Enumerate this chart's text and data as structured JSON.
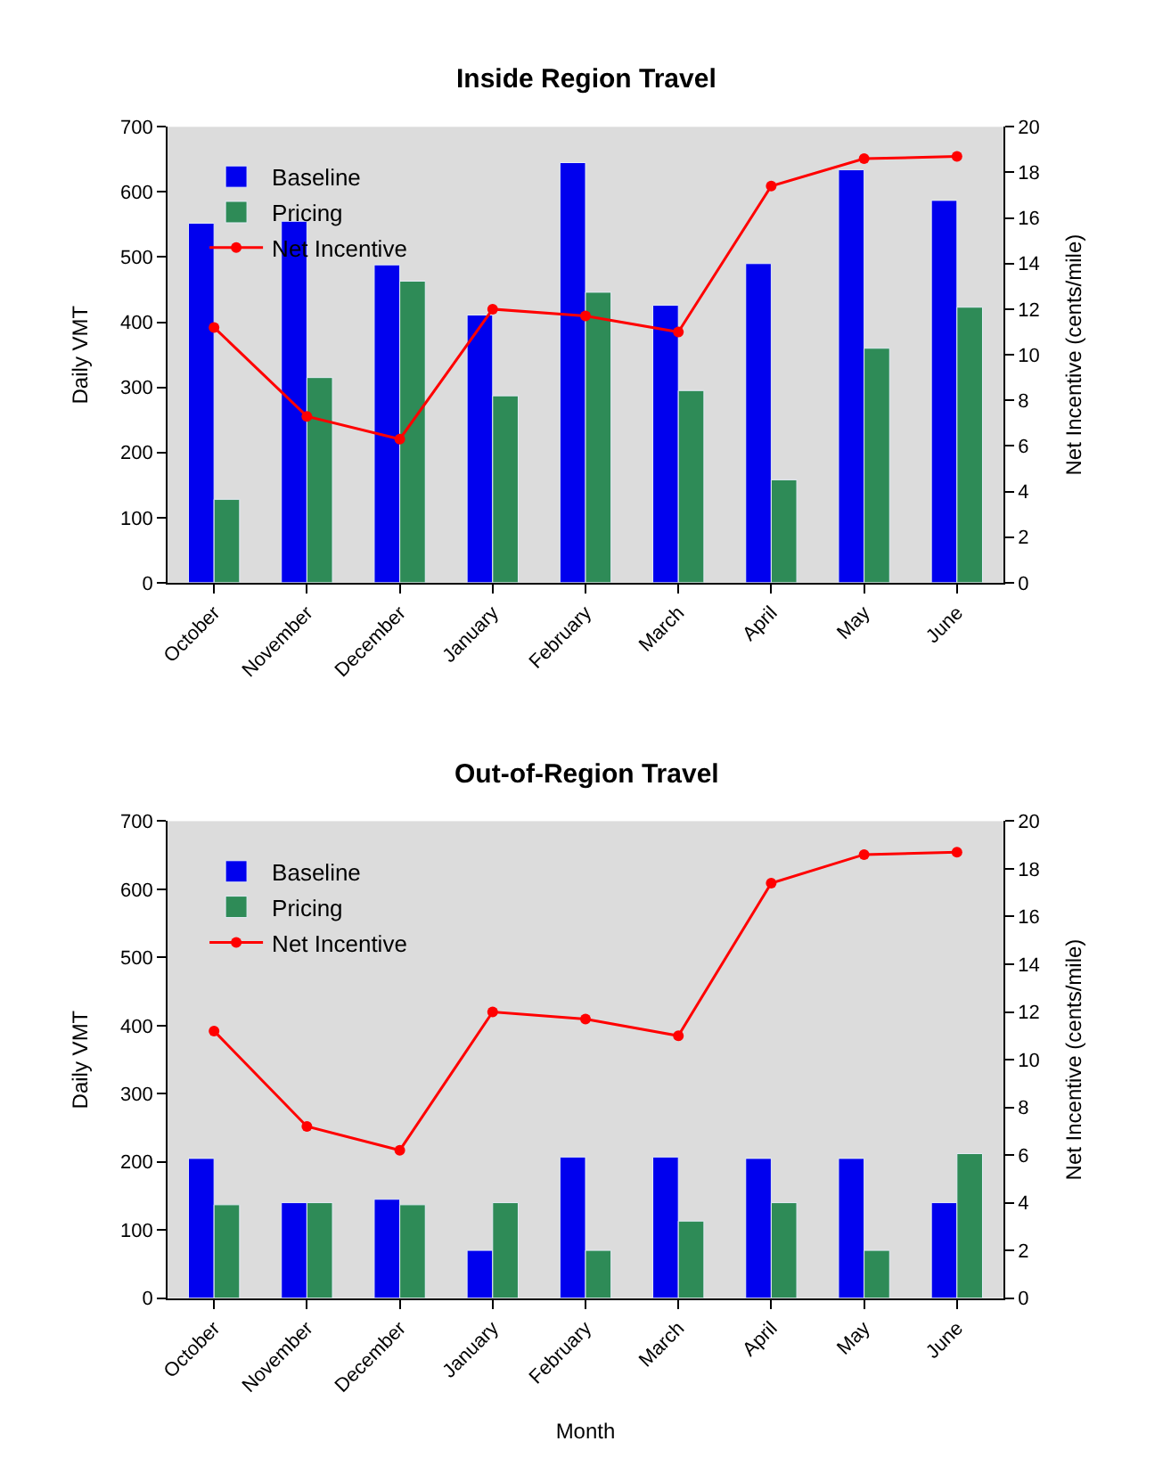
{
  "chart_data": [
    {
      "type": "bar",
      "title": "Inside Region Travel",
      "ylabel": "Daily VMT",
      "y2label": "Net Incentive (cents/mile)",
      "categories": [
        "October",
        "November",
        "December",
        "January",
        "February",
        "March",
        "April",
        "May",
        "June"
      ],
      "series": [
        {
          "name": "Baseline",
          "color": "#0000ee",
          "values": [
            552,
            555,
            488,
            411,
            645,
            426,
            490,
            634,
            587
          ]
        },
        {
          "name": "Pricing",
          "color": "#2e8b57",
          "values": [
            128,
            315,
            463,
            287,
            446,
            295,
            158,
            360,
            423
          ]
        },
        {
          "name": "Net Incentive",
          "type": "line",
          "axis": "y2",
          "color": "#ff0000",
          "marker": "circle",
          "values": [
            11.2,
            7.3,
            6.3,
            12.0,
            11.7,
            11.0,
            17.4,
            18.6,
            18.7
          ]
        }
      ],
      "ylim": [
        0,
        700
      ],
      "yticks": [
        0,
        100,
        200,
        300,
        400,
        500,
        600,
        700
      ],
      "y2lim": [
        0,
        20
      ],
      "y2ticks": [
        0,
        2,
        4,
        6,
        8,
        10,
        12,
        14,
        16,
        18,
        20
      ],
      "grid": false,
      "legend": "top left"
    },
    {
      "type": "bar",
      "title": "Out-of-Region Travel",
      "xlabel": "Month",
      "ylabel": "Daily VMT",
      "y2label": "Net Incentive (cents/mile)",
      "categories": [
        "October",
        "November",
        "December",
        "January",
        "February",
        "March",
        "April",
        "May",
        "June"
      ],
      "series": [
        {
          "name": "Baseline",
          "color": "#0000ee",
          "values": [
            205,
            140,
            145,
            70,
            207,
            207,
            205,
            205,
            140
          ]
        },
        {
          "name": "Pricing",
          "color": "#2e8b57",
          "values": [
            137,
            140,
            137,
            140,
            70,
            113,
            140,
            70,
            212
          ]
        },
        {
          "name": "Net Incentive",
          "type": "line",
          "axis": "y2",
          "color": "#ff0000",
          "marker": "circle",
          "values": [
            11.2,
            7.2,
            6.2,
            12.0,
            11.7,
            11.0,
            17.4,
            18.6,
            18.7
          ]
        }
      ],
      "ylim": [
        0,
        700
      ],
      "yticks": [
        0,
        100,
        200,
        300,
        400,
        500,
        600,
        700
      ],
      "y2lim": [
        0,
        20
      ],
      "y2ticks": [
        0,
        2,
        4,
        6,
        8,
        10,
        12,
        14,
        16,
        18,
        20
      ],
      "grid": false,
      "legend": "top left"
    }
  ]
}
